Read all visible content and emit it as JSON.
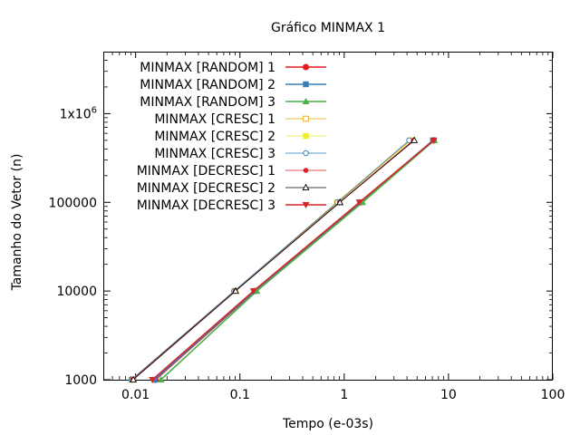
{
  "chart_data": {
    "type": "line",
    "title": "Gráfico MINMAX 1",
    "xlabel": "Tempo (e-03s)",
    "ylabel": "Tamanho do Vetor (n)",
    "xscale": "log",
    "yscale": "log",
    "xlim": [
      0.005,
      100
    ],
    "ylim": [
      1000,
      5000000
    ],
    "x_ticks": [
      {
        "value": 0.01,
        "label": "0.01"
      },
      {
        "value": 0.1,
        "label": "0.1"
      },
      {
        "value": 1,
        "label": "1"
      },
      {
        "value": 10,
        "label": "10"
      },
      {
        "value": 100,
        "label": "100"
      }
    ],
    "y_ticks": [
      {
        "value": 1000,
        "label": "1000"
      },
      {
        "value": 10000,
        "label": "10000"
      },
      {
        "value": 100000,
        "label": "100000"
      },
      {
        "value": 1000000,
        "label": "1x10",
        "sup": "6"
      }
    ],
    "grid": false,
    "legend_position": "top-left",
    "series": [
      {
        "name": "MINMAX [RANDOM] 1",
        "color": "#e41a1c",
        "marker": "circle-filled",
        "line_width": 1.6,
        "points": [
          [
            0.0155,
            1000
          ],
          [
            0.14,
            10000
          ],
          [
            1.45,
            100000
          ],
          [
            7.2,
            500000
          ]
        ]
      },
      {
        "name": "MINMAX [RANDOM] 2",
        "color": "#377eb8",
        "marker": "square-filled",
        "line_width": 1.6,
        "points": [
          [
            0.0152,
            1000
          ],
          [
            0.138,
            10000
          ],
          [
            1.42,
            100000
          ],
          [
            7.1,
            500000
          ]
        ]
      },
      {
        "name": "MINMAX [RANDOM] 3",
        "color": "#4daf4a",
        "marker": "triangle-up-filled",
        "line_width": 1.6,
        "points": [
          [
            0.0175,
            1000
          ],
          [
            0.145,
            10000
          ],
          [
            1.5,
            100000
          ],
          [
            7.3,
            500000
          ]
        ]
      },
      {
        "name": "MINMAX [CRESC] 1",
        "color": "#e6a700",
        "marker": "square-open",
        "line_width": 0.8,
        "points": [
          [
            0.0092,
            1000
          ],
          [
            0.089,
            10000
          ],
          [
            0.87,
            100000
          ],
          [
            4.35,
            500000
          ]
        ]
      },
      {
        "name": "MINMAX [CRESC] 2",
        "color": "#eeee22",
        "marker": "square-filled",
        "line_width": 0.8,
        "points": [
          [
            0.0094,
            1000
          ],
          [
            0.09,
            10000
          ],
          [
            0.85,
            100000
          ],
          [
            4.3,
            500000
          ]
        ]
      },
      {
        "name": "MINMAX [CRESC] 3",
        "color": "#1f77b4",
        "marker": "circle-open",
        "line_width": 0.8,
        "points": [
          [
            0.0091,
            1000
          ],
          [
            0.088,
            10000
          ],
          [
            0.86,
            100000
          ],
          [
            4.2,
            500000
          ]
        ]
      },
      {
        "name": "MINMAX [DECRESC] 1",
        "color": "#e41a1c",
        "marker": "circle-filled-small",
        "line_width": 0.8,
        "points": [
          [
            0.0093,
            1000
          ],
          [
            0.09,
            10000
          ],
          [
            0.9,
            100000
          ],
          [
            4.6,
            500000
          ]
        ]
      },
      {
        "name": "MINMAX [DECRESC] 2",
        "color": "#000000",
        "marker": "triangle-up-open",
        "line_width": 0.8,
        "points": [
          [
            0.0095,
            1000
          ],
          [
            0.091,
            10000
          ],
          [
            0.91,
            100000
          ],
          [
            4.7,
            500000
          ]
        ]
      },
      {
        "name": "MINMAX [DECRESC] 3",
        "color": "#d62728",
        "marker": "triangle-down-filled",
        "line_width": 1.6,
        "points": [
          [
            0.0145,
            1000
          ],
          [
            0.135,
            10000
          ],
          [
            1.4,
            100000
          ],
          [
            7.2,
            500000
          ]
        ]
      }
    ]
  }
}
